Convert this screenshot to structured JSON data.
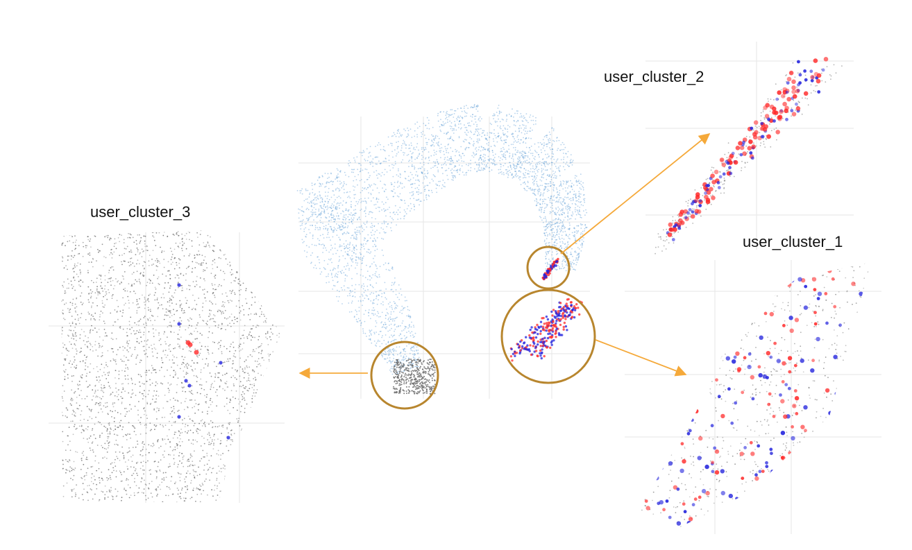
{
  "labels": {
    "cluster_1": "user_cluster_1",
    "cluster_2": "user_cluster_2",
    "cluster_3": "user_cluster_3"
  },
  "colors": {
    "background_points": "#5b9bd5",
    "gray_points": "#6b6b6b",
    "red_points": "#ff2a2a",
    "blue_points": "#2222dd",
    "circle_stroke": "#b8862e",
    "arrow": "#f5a93a",
    "grid": "#e6e6e6"
  }
}
